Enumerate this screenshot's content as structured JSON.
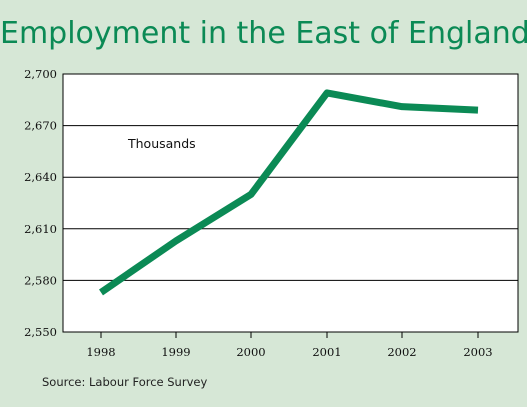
{
  "chart_data": {
    "type": "line",
    "title": "Employment in the East of England",
    "annotation": "Thousands",
    "source": "Source: Labour Force Survey",
    "categories": [
      "1998",
      "1999",
      "2000",
      "2001",
      "2002",
      "2003"
    ],
    "series": [
      {
        "values": [
          2573,
          2603,
          2630,
          2689,
          2681,
          2679
        ]
      }
    ],
    "y_ticks": [
      "2,550",
      "2,580",
      "2,610",
      "2,640",
      "2,670",
      "2,700"
    ],
    "ylim": [
      2550,
      2700
    ],
    "grid": true,
    "colors": {
      "line": "#0b8a55",
      "title": "#0b8a55",
      "background": "#d6e7d6",
      "plot": "#ffffff"
    }
  }
}
